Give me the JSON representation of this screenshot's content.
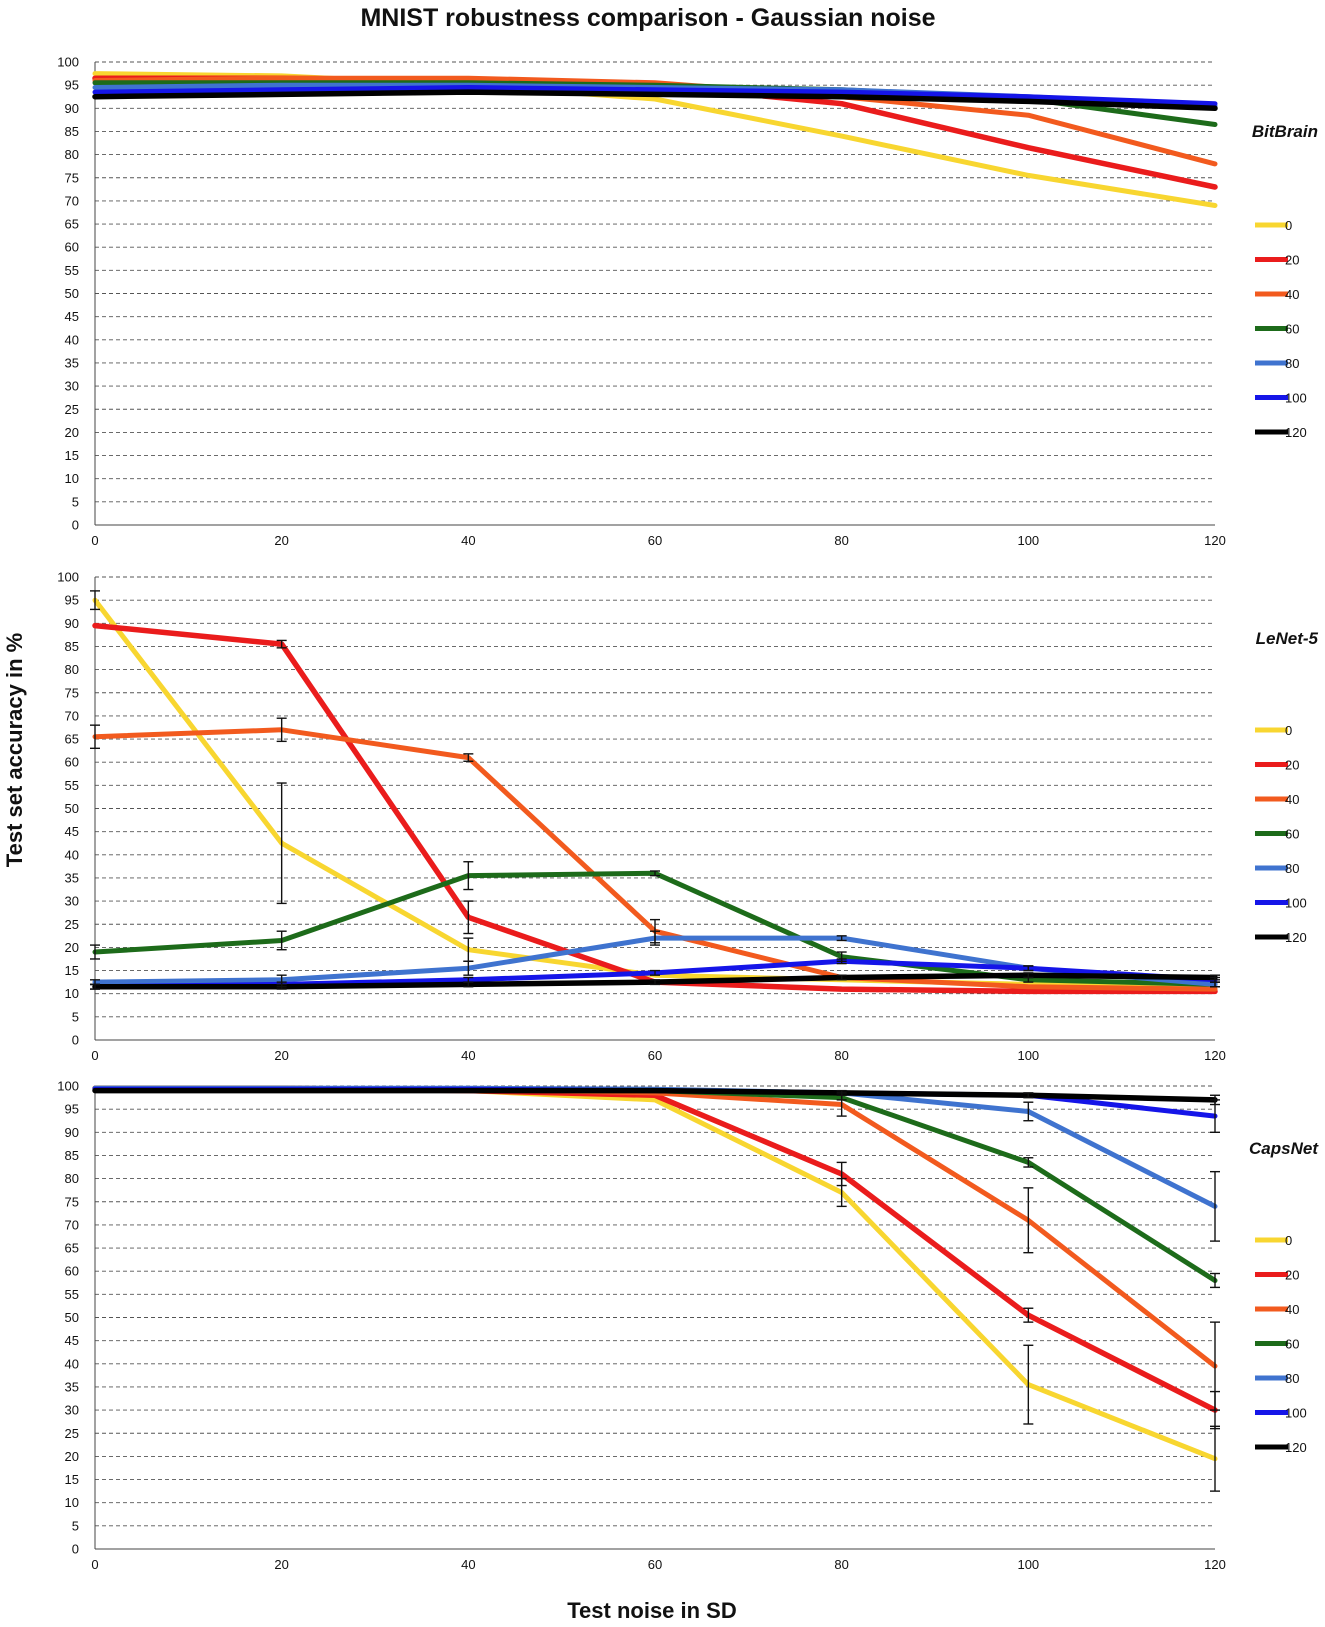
{
  "title": "MNIST robustness comparison - Gaussian noise",
  "xlabel": "Test noise in SD",
  "ylabel": "Test set accuracy in %",
  "colors": {
    "0": "#f8d630",
    "20": "#ea1c1c",
    "40": "#f25a1e",
    "60": "#1d6b1a",
    "80": "#3f73cf",
    "100": "#1515e8",
    "120": "#000000"
  },
  "chart_data": [
    {
      "type": "line",
      "panel": "BitBrain",
      "x": [
        0,
        20,
        40,
        60,
        80,
        100,
        120
      ],
      "xticks": [
        "0",
        "20",
        "40",
        "60",
        "80",
        "100",
        "120"
      ],
      "yticks": [
        "0",
        "5",
        "10",
        "15",
        "20",
        "25",
        "30",
        "35",
        "40",
        "45",
        "50",
        "55",
        "60",
        "65",
        "70",
        "75",
        "80",
        "85",
        "90",
        "95",
        "100"
      ],
      "ylim": [
        0,
        100
      ],
      "xlim": [
        0,
        120
      ],
      "grid": true,
      "legend_position": "right",
      "series": [
        {
          "name": "0",
          "values": [
            97.5,
            97,
            95,
            92,
            84,
            75.5,
            69
          ]
        },
        {
          "name": "20",
          "values": [
            96.5,
            96.5,
            96,
            95,
            91,
            81.5,
            73
          ]
        },
        {
          "name": "40",
          "values": [
            96,
            96.5,
            96.5,
            95.5,
            92.5,
            88.5,
            78
          ]
        },
        {
          "name": "60",
          "values": [
            95.5,
            95.5,
            95.5,
            95,
            94,
            92,
            86.5
          ]
        },
        {
          "name": "80",
          "values": [
            94.5,
            95,
            95,
            94.5,
            94,
            92.5,
            90.5
          ]
        },
        {
          "name": "100",
          "values": [
            93.5,
            94,
            94.5,
            94,
            93.5,
            92.5,
            91
          ]
        },
        {
          "name": "120",
          "values": [
            92.5,
            93,
            93.5,
            93,
            92.5,
            91.5,
            90
          ]
        }
      ]
    },
    {
      "type": "line",
      "panel": "LeNet-5",
      "x": [
        0,
        20,
        40,
        60,
        80,
        100,
        120
      ],
      "xticks": [
        "0",
        "20",
        "40",
        "60",
        "80",
        "100",
        "120"
      ],
      "yticks": [
        "0",
        "5",
        "10",
        "15",
        "20",
        "25",
        "30",
        "35",
        "40",
        "45",
        "50",
        "55",
        "60",
        "65",
        "70",
        "75",
        "80",
        "85",
        "90",
        "95",
        "100"
      ],
      "ylim": [
        0,
        100
      ],
      "xlim": [
        0,
        120
      ],
      "grid": true,
      "legend_position": "right",
      "series": [
        {
          "name": "0",
          "values": [
            95,
            42.5,
            19.5,
            14,
            13,
            12,
            11
          ],
          "err": [
            2,
            13,
            2.5,
            0,
            0,
            0,
            0
          ]
        },
        {
          "name": "20",
          "values": [
            89.5,
            85.5,
            26.5,
            12.5,
            11,
            10.5,
            10.5
          ],
          "err": [
            0,
            0.8,
            3.5,
            0,
            0,
            0,
            0
          ]
        },
        {
          "name": "40",
          "values": [
            65.5,
            67,
            61,
            23.5,
            13.5,
            11.5,
            11
          ],
          "err": [
            2.5,
            2.5,
            0.8,
            2.5,
            0,
            0,
            0
          ]
        },
        {
          "name": "60",
          "values": [
            19,
            21.5,
            35.5,
            36,
            18,
            13,
            12
          ],
          "err": [
            1.5,
            2,
            3,
            0.5,
            1,
            0.5,
            0.5
          ]
        },
        {
          "name": "80",
          "values": [
            12.5,
            13,
            15.5,
            22,
            22,
            15.5,
            12
          ],
          "err": [
            0.5,
            1,
            1.5,
            1.5,
            0.5,
            0.5,
            0.5
          ]
        },
        {
          "name": "100",
          "values": [
            11.5,
            12,
            13,
            14.5,
            17,
            15.5,
            13
          ],
          "err": [
            0.5,
            0.5,
            0.5,
            0.5,
            0.5,
            0.5,
            0.5
          ]
        },
        {
          "name": "120",
          "values": [
            11.5,
            11.5,
            12,
            12.5,
            13.5,
            14,
            13.5
          ],
          "err": [
            0.5,
            0.5,
            0.5,
            0.5,
            0.5,
            0.5,
            0.5
          ]
        }
      ]
    },
    {
      "type": "line",
      "panel": "CapsNet",
      "x": [
        0,
        20,
        40,
        60,
        80,
        100,
        120
      ],
      "xticks": [
        "0",
        "20",
        "40",
        "60",
        "80",
        "100",
        "120"
      ],
      "yticks": [
        "0",
        "5",
        "10",
        "15",
        "20",
        "25",
        "30",
        "35",
        "40",
        "45",
        "50",
        "55",
        "60",
        "65",
        "70",
        "75",
        "80",
        "85",
        "90",
        "95",
        "100"
      ],
      "ylim": [
        0,
        100
      ],
      "xlim": [
        0,
        120
      ],
      "grid": true,
      "legend_position": "right",
      "series": [
        {
          "name": "0",
          "values": [
            99.3,
            99.3,
            99,
            97,
            77,
            35.5,
            19.5
          ],
          "err": [
            0,
            0,
            0,
            0,
            3,
            8.5,
            7
          ]
        },
        {
          "name": "20",
          "values": [
            99.5,
            99.5,
            99,
            98,
            81,
            50.5,
            30
          ],
          "err": [
            0,
            0,
            0,
            0,
            2.5,
            1.5,
            4
          ]
        },
        {
          "name": "40",
          "values": [
            99.5,
            99.5,
            99.3,
            98.5,
            96,
            71,
            39.5
          ],
          "err": [
            0,
            0,
            0,
            0,
            2.5,
            7,
            9.5
          ]
        },
        {
          "name": "60",
          "values": [
            99.5,
            99.5,
            99.3,
            99,
            97.5,
            83.5,
            58
          ],
          "err": [
            0,
            0,
            0,
            0,
            0.5,
            1,
            1.5
          ]
        },
        {
          "name": "80",
          "values": [
            99.5,
            99.5,
            99.5,
            99.3,
            98.5,
            94.5,
            74
          ],
          "err": [
            0,
            0,
            0,
            0,
            0.5,
            2,
            7.5
          ]
        },
        {
          "name": "100",
          "values": [
            99.3,
            99.3,
            99.3,
            99,
            98.5,
            98,
            93.5
          ],
          "err": [
            0,
            0,
            0,
            0,
            0,
            0.5,
            3.5
          ]
        },
        {
          "name": "120",
          "values": [
            99,
            99,
            99,
            99,
            98.5,
            98,
            97
          ],
          "err": [
            0,
            0,
            0,
            0,
            0,
            0.5,
            1
          ]
        }
      ]
    }
  ]
}
